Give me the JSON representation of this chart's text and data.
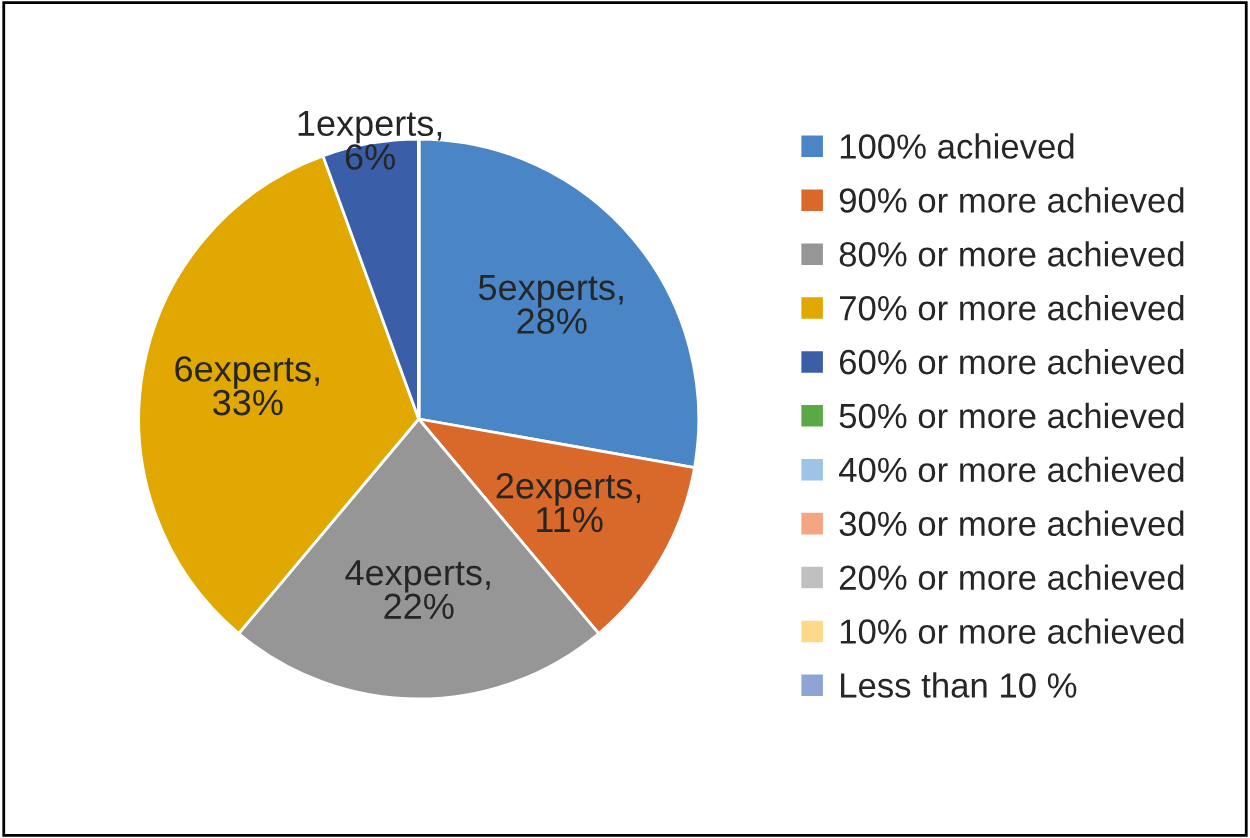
{
  "chart_data": {
    "type": "pie",
    "categories": [
      "100% achieved",
      "90% or more achieved",
      "80% or more achieved",
      "70% or more achieved",
      "60% or more achieved",
      "50% or more achieved",
      "40% or more achieved",
      "30% or more achieved",
      "20% or more achieved",
      "10% or more achieved",
      "Less than 10 %"
    ],
    "values": [
      5,
      2,
      4,
      6,
      1,
      0,
      0,
      0,
      0,
      0,
      0
    ],
    "value_labels": [
      "5experts,\n28%",
      "2experts,\n11%",
      "4experts,\n22%",
      "6experts,\n33%",
      "1experts,\n6%",
      null,
      null,
      null,
      null,
      null,
      null
    ],
    "colors": [
      "#4a86c5",
      "#d9692a",
      "#969696",
      "#e0a800",
      "#3a5ea8",
      "#5aa846",
      "#9dc3e6",
      "#f4a582",
      "#c0c0c0",
      "#ffd98a",
      "#8fa4d6"
    ],
    "legend": "right"
  }
}
